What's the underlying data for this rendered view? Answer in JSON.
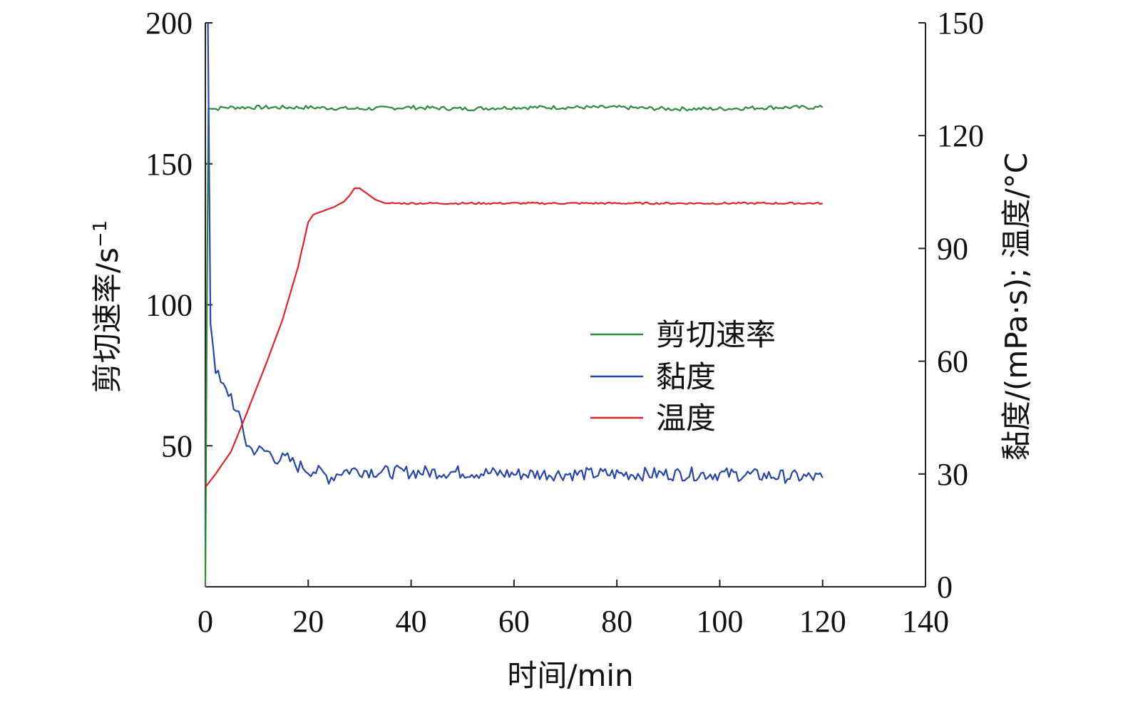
{
  "chart_data": {
    "type": "line",
    "x_label": "时间/min",
    "y_left_label": "剪切速率/s",
    "y_left_label_superscript": "−1",
    "y_right_label": "黏度/(mPa·s); 温度/°C",
    "x_range": [
      0,
      140
    ],
    "y_left_range": [
      0,
      200
    ],
    "y_right_range": [
      0,
      150
    ],
    "x_ticks": [
      "0",
      "20",
      "40",
      "60",
      "80",
      "100",
      "120",
      "140"
    ],
    "y_left_ticks": [
      "50",
      "100",
      "150",
      "200"
    ],
    "y_right_ticks": [
      "0",
      "30",
      "60",
      "90",
      "120",
      "150"
    ],
    "grid": false,
    "legend_position": "center-right",
    "series": [
      {
        "name": "剪切速率",
        "color": "#2e8b3e",
        "axis": "left",
        "points": [
          [
            0,
            0
          ],
          [
            0.3,
            100
          ],
          [
            0.6,
            169.5
          ],
          [
            2,
            169.5
          ],
          [
            4,
            170
          ],
          [
            10,
            170
          ],
          [
            20,
            170
          ],
          [
            30,
            169.5
          ],
          [
            40,
            170
          ],
          [
            50,
            169.5
          ],
          [
            60,
            170
          ],
          [
            70,
            170
          ],
          [
            80,
            170
          ],
          [
            90,
            169.5
          ],
          [
            100,
            169.5
          ],
          [
            110,
            170
          ],
          [
            120,
            170
          ]
        ],
        "noise": 0.7
      },
      {
        "name": "黏度",
        "color": "#2747a8",
        "axis": "right",
        "points": [
          [
            0.5,
            150
          ],
          [
            1,
            70
          ],
          [
            2,
            58
          ],
          [
            3,
            54
          ],
          [
            4,
            52
          ],
          [
            5,
            51
          ],
          [
            6,
            46
          ],
          [
            7,
            44
          ],
          [
            8,
            38
          ],
          [
            9,
            36.5
          ],
          [
            10,
            36.5
          ],
          [
            11,
            36
          ],
          [
            12,
            36
          ],
          [
            13,
            35
          ],
          [
            14,
            34
          ],
          [
            15,
            34
          ],
          [
            16,
            34
          ],
          [
            17,
            33
          ],
          [
            18,
            32
          ],
          [
            19,
            32
          ],
          [
            20,
            31
          ],
          [
            21,
            31
          ],
          [
            22,
            30.5
          ],
          [
            23,
            30
          ],
          [
            24,
            29
          ],
          [
            25,
            29.5
          ],
          [
            26,
            30.5
          ],
          [
            28,
            31
          ],
          [
            30,
            31
          ],
          [
            35,
            30.5
          ],
          [
            40,
            30.5
          ],
          [
            50,
            30.5
          ],
          [
            60,
            30
          ],
          [
            70,
            30
          ],
          [
            80,
            30
          ],
          [
            90,
            30
          ],
          [
            100,
            30
          ],
          [
            110,
            29.5
          ],
          [
            120,
            29
          ]
        ],
        "noise": 1.8
      },
      {
        "name": "温度",
        "color": "#e0242c",
        "axis": "right",
        "points": [
          [
            0,
            26.5
          ],
          [
            2,
            30
          ],
          [
            5,
            36
          ],
          [
            8,
            46
          ],
          [
            12,
            60
          ],
          [
            15,
            71
          ],
          [
            18,
            85
          ],
          [
            20,
            97
          ],
          [
            21,
            99
          ],
          [
            23,
            100
          ],
          [
            25,
            101
          ],
          [
            27,
            102.5
          ],
          [
            28,
            104
          ],
          [
            29,
            106
          ],
          [
            30,
            106
          ],
          [
            31,
            105
          ],
          [
            33,
            103
          ],
          [
            35,
            102
          ],
          [
            40,
            102
          ],
          [
            60,
            102
          ],
          [
            80,
            102
          ],
          [
            100,
            102
          ],
          [
            120,
            102
          ]
        ],
        "noise": 0.25
      }
    ]
  }
}
